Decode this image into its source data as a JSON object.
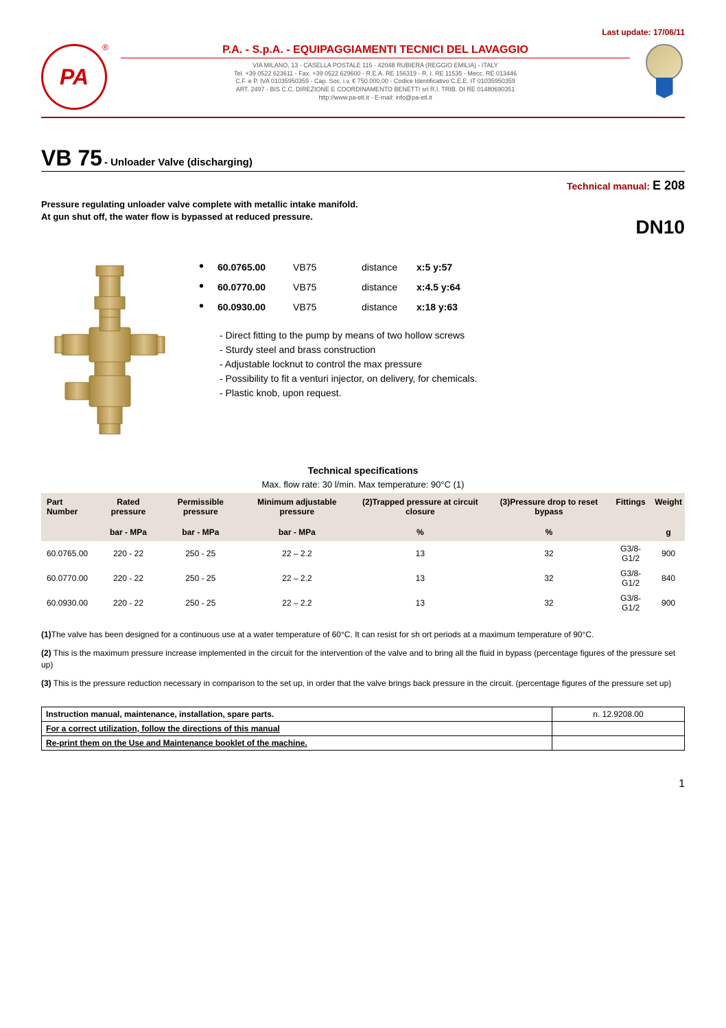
{
  "lastUpdate": "Last update: 17/06/11",
  "header": {
    "logoText": "PA",
    "regMark": "®",
    "companyTitle": "P.A. - S.p.A. - EQUIPAGGIAMENTI TECNICI DEL LAVAGGIO",
    "addressLine1": "VIA MILANO, 13 - CASELLA POSTALE 115 - 42048 RUBIERA (REGGIO EMILIA) - ITALY",
    "addressLine2": "Tel. +39 0522 623611 - Fax. +39 0522 629600 - R.E.A. RE 156319 - R. I. RE 11535 - Mecc. RE 013446",
    "addressLine3": "C.F. e P. IVA 01035950359 - Cap. Soc. i.v. € 750.000,00 - Codice Identificativo C.E.E.  IT 01035950359",
    "addressLine4": "ART. 2497 - BIS C.C. DIREZIONE E COORDINAMENTO BENETTI srl R.I. TRIB. DI RE 01480690351",
    "addressLine5": "http://www.pa-etl.it - E-mail: info@pa-etl.it"
  },
  "product": {
    "code": "VB 75",
    "subtitle": "- Unloader Valve  (discharging)",
    "manualLabel": "Technical manual: ",
    "manualValue": "E 208",
    "description1": "Pressure regulating unloader valve complete with metallic intake manifold.",
    "description2": "At gun shut off, the water flow is bypassed at reduced pressure.",
    "dnLabel": "DN10"
  },
  "partsList": [
    {
      "number": "60.0765.00",
      "model": "VB75",
      "distLabel": "distance",
      "coords": "x:5    y:57"
    },
    {
      "number": "60.0770.00",
      "model": "VB75",
      "distLabel": "distance",
      "coords": "x:4.5 y:64"
    },
    {
      "number": "60.0930.00",
      "model": "VB75",
      "distLabel": "distance",
      "coords": "x:18  y:63"
    }
  ],
  "features": [
    "- Direct fitting to the pump by means of two hollow screws",
    "- Sturdy steel and brass construction",
    "- Adjustable locknut to control the max pressure",
    "- Possibility to fit a venturi injector, on delivery, for chemicals.",
    "- Plastic knob, upon request."
  ],
  "techSpec": {
    "title": "Technical specifications",
    "subtitle": "Max. flow rate: 30 l/min.     Max temperature: 90°C (1)",
    "headers": [
      "Part Number",
      "Rated pressure",
      "Permissible pressure",
      "Minimum adjustable pressure",
      "(2)Trapped pressure  at circuit closure",
      "(3)Pressure drop to reset bypass",
      "Fittings",
      "Weight"
    ],
    "units": [
      "",
      "bar - MPa",
      "bar - MPa",
      "bar - MPa",
      "%",
      "%",
      "",
      "g"
    ],
    "rows": [
      [
        "60.0765.00",
        "220 - 22",
        "250 - 25",
        "22 – 2.2",
        "13",
        "32",
        "G3/8-G1/2",
        "900"
      ],
      [
        "60.0770.00",
        "220 - 22",
        "250 - 25",
        "22 – 2.2",
        "13",
        "32",
        "G3/8-G1/2",
        "840"
      ],
      [
        "60.0930.00",
        "220 - 22",
        "250 - 25",
        "22 – 2.2",
        "13",
        "32",
        "G3/8-G1/2",
        "900"
      ]
    ]
  },
  "notes": {
    "note1Label": "(1)",
    "note1": "The valve has been designed for a continuous use at a water temperature of 60°C. It can resist for sh ort periods at a maximum temperature of 90°C.",
    "note2Label": "(2)",
    "note2": " This is the maximum pressure increase implemented in the circuit for the intervention of the valve and to bring all the fluid in bypass (percentage figures of the pressure set up)",
    "note3Label": " (3)",
    "note3": " This is the pressure reduction necessary in comparison to the set up, in order that the valve brings back pressure in the circuit. (percentage figures of the pressure set up)"
  },
  "manualTable": {
    "row1Left": "Instruction manual, maintenance, installation, spare parts.",
    "row1Right": "n. 12.9208.00",
    "row2": "For a correct utilization, follow the directions of this manual",
    "row3": "Re-print them on the Use and Maintenance booklet of the machine."
  },
  "pageNum": "1",
  "colors": {
    "accentRed": "#cc0000",
    "darkRed": "#990000",
    "tableHeaderBg": "#e8e0d8",
    "brassMain": "#c9a85f",
    "brassDark": "#a88940",
    "brassLight": "#dbc18a"
  }
}
